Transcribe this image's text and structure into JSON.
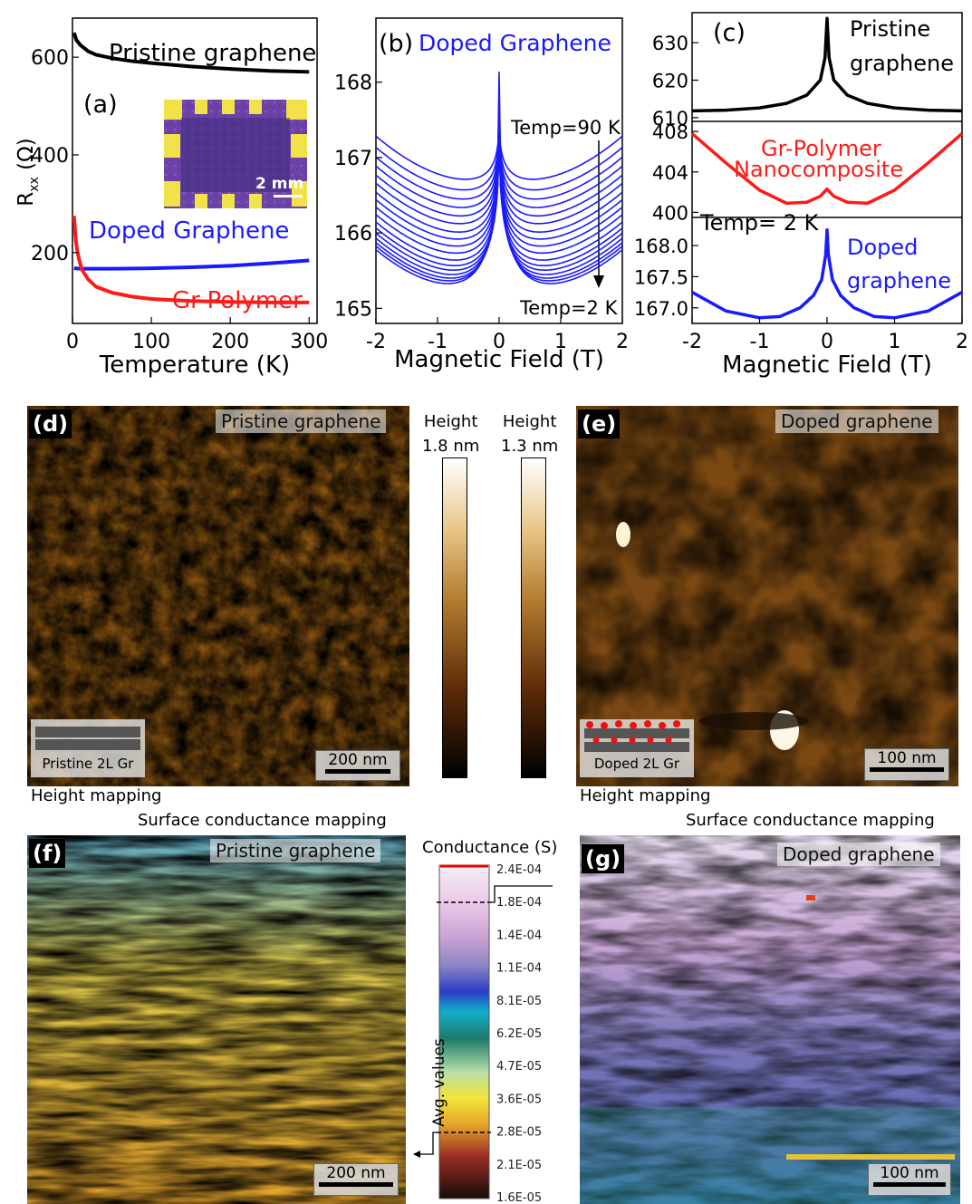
{
  "chart_data": [
    {
      "type": "line",
      "panel": "(a)",
      "xlabel": "Temperature (K)",
      "ylabel": "Rxx (Ω)",
      "xlim": [
        0,
        310
      ],
      "ylim": [
        55,
        680
      ],
      "xticks": [
        "0",
        "100",
        "200",
        "300"
      ],
      "yticks": [
        "200",
        "400",
        "600"
      ],
      "series": [
        {
          "name": "Pristine graphene",
          "color": "#000000",
          "x": [
            2,
            5,
            10,
            20,
            30,
            50,
            75,
            100,
            150,
            200,
            250,
            300
          ],
          "y": [
            650,
            635,
            625,
            612,
            605,
            598,
            592,
            588,
            581,
            576,
            572,
            570
          ]
        },
        {
          "name": "Doped Graphene",
          "color": "#1a1aff",
          "x": [
            2,
            10,
            20,
            50,
            100,
            150,
            200,
            250,
            300
          ],
          "y": [
            168,
            167,
            167,
            167,
            168,
            170,
            173,
            178,
            184
          ]
        },
        {
          "name": "Gr-Polymer",
          "color": "#ff1a1a",
          "x": [
            2,
            4,
            6,
            8,
            12,
            20,
            30,
            50,
            75,
            100,
            150,
            200,
            250,
            300
          ],
          "y": [
            275,
            228,
            205,
            188,
            165,
            145,
            130,
            118,
            110,
            105,
            101,
            99,
            98,
            98
          ]
        }
      ],
      "inset_scalebar": "2 mm"
    },
    {
      "type": "line",
      "panel": "(b)",
      "title": "Doped Graphene",
      "xlabel": "Magnetic Field (T)",
      "xlim": [
        -2,
        2
      ],
      "ylim": [
        164.8,
        168.85
      ],
      "xticks": [
        "-2",
        "-1",
        "0",
        "1",
        "2"
      ],
      "yticks": [
        "165",
        "166",
        "167",
        "168"
      ],
      "annotations": [
        "Temp=90 K",
        "Temp=2 K"
      ],
      "series_description": "17 curves, Temp from 90 K (top) down to 2 K (bottom)",
      "curve_minima": [
        166.75,
        166.6,
        166.47,
        166.35,
        166.23,
        166.12,
        166.0,
        165.9,
        165.8,
        165.7,
        165.6,
        165.52,
        165.45,
        165.38,
        165.32,
        165.27,
        165.22
      ],
      "peak_heights": [
        0.95,
        1.05,
        1.15,
        1.25,
        1.35,
        1.45,
        1.55,
        1.65,
        1.75,
        1.85,
        1.95,
        2.05,
        2.2,
        2.4,
        2.6,
        2.85,
        3.1
      ],
      "color": "#1a1aff"
    },
    {
      "type": "line",
      "panel": "(c)",
      "xlabel": "Magnetic Field (T)",
      "xlim": [
        -2,
        2
      ],
      "xticks": [
        "-2",
        "-1",
        "0",
        "1",
        "2"
      ],
      "annotation": "Temp= 2 K",
      "subplots": [
        {
          "name": "Pristine graphene",
          "color": "#000000",
          "ylim": [
            609,
            638
          ],
          "yticks": [
            "610",
            "620",
            "630"
          ],
          "x": [
            -2,
            -1.5,
            -1,
            -0.6,
            -0.3,
            -0.1,
            -0.03,
            0,
            0.03,
            0.1,
            0.3,
            0.6,
            1,
            1.5,
            2
          ],
          "y": [
            611.8,
            612,
            612.6,
            613.8,
            616,
            620,
            626,
            636.5,
            626,
            620,
            616,
            613.8,
            612.6,
            612,
            611.8
          ]
        },
        {
          "name": "Gr-Polymer Nanocomposite",
          "color": "#ff1a1a",
          "ylim": [
            399.5,
            409
          ],
          "yticks": [
            "400",
            "404",
            "408"
          ],
          "x": [
            -2,
            -1.5,
            -1,
            -0.6,
            -0.3,
            -0.1,
            0,
            0.1,
            0.3,
            0.6,
            1,
            1.5,
            2
          ],
          "y": [
            407.8,
            404.9,
            402.2,
            400.9,
            401.0,
            401.6,
            402.3,
            401.6,
            401.0,
            400.9,
            402.2,
            404.9,
            407.8
          ]
        },
        {
          "name": "Doped graphene",
          "color": "#1a1aff",
          "ylim": [
            166.75,
            168.45
          ],
          "yticks": [
            "167.0",
            "167.5",
            "168.0"
          ],
          "x": [
            -2,
            -1.5,
            -1,
            -0.7,
            -0.4,
            -0.2,
            -0.08,
            -0.02,
            0,
            0.02,
            0.08,
            0.2,
            0.4,
            0.7,
            1,
            1.5,
            2
          ],
          "y": [
            167.25,
            166.95,
            166.84,
            166.86,
            167.0,
            167.2,
            167.45,
            167.85,
            168.25,
            167.85,
            167.45,
            167.2,
            167.0,
            166.86,
            166.84,
            166.95,
            167.25
          ]
        }
      ]
    },
    {
      "type": "heatmap",
      "panel": "(d)",
      "title": "Pristine graphene",
      "inset_label": "Pristine 2L Gr",
      "scalebar": "200 nm",
      "caption": "Height mapping"
    },
    {
      "type": "heatmap",
      "panel": "(e)",
      "title": "Doped graphene",
      "inset_label": "Doped 2L Gr",
      "scalebar": "100 nm",
      "caption": "Height mapping"
    },
    {
      "type": "heatmap",
      "panel": "(f)",
      "title": "Pristine graphene",
      "scalebar": "200 nm",
      "caption": "Surface conductance mapping"
    },
    {
      "type": "heatmap",
      "panel": "(g)",
      "title": "Doped graphene",
      "scalebar": "100 nm",
      "caption": "Surface conductance mapping"
    }
  ],
  "colorbars": {
    "height_left": {
      "title": "Height",
      "max": "1.8 nm"
    },
    "height_right": {
      "title": "Height",
      "max": "1.3 nm"
    },
    "conductance": {
      "title": "Conductance (S)",
      "ticks": [
        "2.4E-04",
        "1.8E-04",
        "1.4E-04",
        "1.1E-04",
        "8.1E-05",
        "6.2E-05",
        "4.7E-05",
        "3.6E-05",
        "2.8E-05",
        "2.1E-05",
        "1.6E-05"
      ],
      "side_label": "Avg. values"
    }
  }
}
